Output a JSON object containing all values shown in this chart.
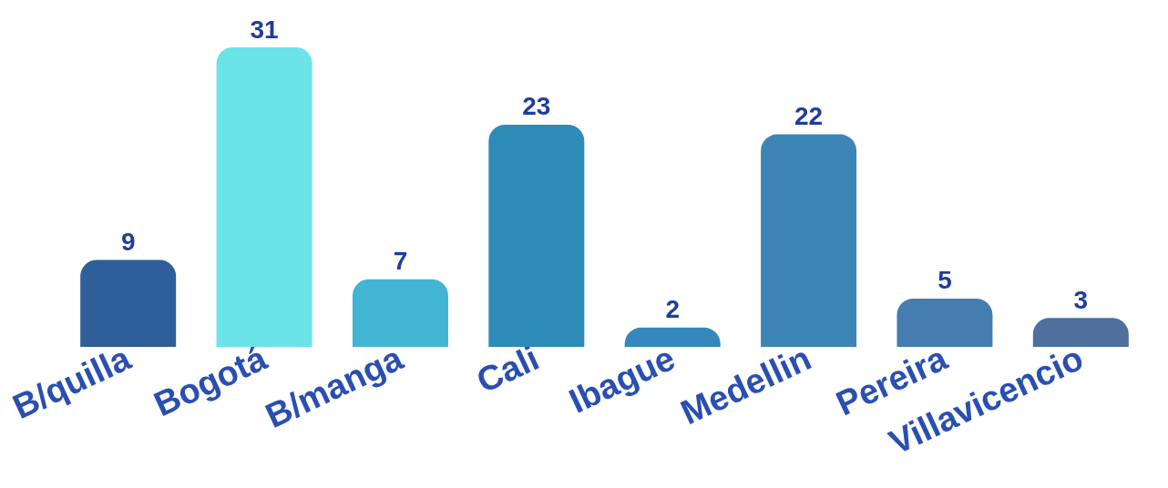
{
  "chart_data": {
    "type": "bar",
    "categories": [
      "B/quilla",
      "Bogotá",
      "B/manga",
      "Cali",
      "Ibague",
      "Medellin",
      "Pereira",
      "Villavicencio"
    ],
    "values": [
      9,
      31,
      7,
      23,
      2,
      22,
      5,
      3
    ],
    "colors": [
      "#2e5f98",
      "#6ae4e8",
      "#42b4d4",
      "#2e8bb8",
      "#3488bc",
      "#3d85b4",
      "#467db0",
      "#4f6f9c"
    ],
    "data_labels": true
  }
}
